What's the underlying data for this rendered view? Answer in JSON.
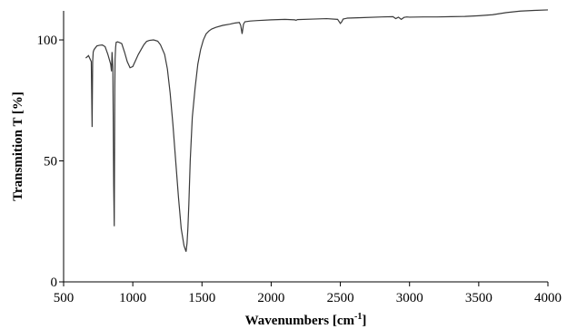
{
  "chart_data": {
    "type": "line",
    "title": "",
    "xlabel": "Wavenumbers [cm",
    "xlabel_superscript": "-1",
    "xlabel_suffix": "]",
    "ylabel": "Transmition T [%]",
    "xlim": [
      500,
      4000
    ],
    "ylim": [
      0,
      112
    ],
    "x_ticks": [
      500,
      1000,
      1500,
      2000,
      2500,
      3000,
      3500,
      4000
    ],
    "x_tick_labels": [
      "500",
      "1000",
      "1500",
      "2000",
      "2500",
      "3000",
      "3500",
      "4000"
    ],
    "y_ticks": [
      0,
      50,
      100
    ],
    "y_tick_labels": [
      "0",
      "50",
      "100"
    ],
    "grid": false,
    "line_color": "#3a3a3a",
    "series": [
      {
        "x": [
          660,
          680,
          700,
          706,
          710,
          714,
          720,
          740,
          760,
          780,
          800,
          820,
          840,
          846,
          850,
          856,
          862,
          866,
          868,
          870,
          872,
          876,
          880,
          890,
          900,
          920,
          940,
          960,
          980,
          1000,
          1020,
          1040,
          1060,
          1080,
          1100,
          1120,
          1150,
          1180,
          1200,
          1230,
          1250,
          1270,
          1290,
          1310,
          1330,
          1350,
          1370,
          1385,
          1392,
          1398,
          1405,
          1415,
          1430,
          1450,
          1470,
          1490,
          1510,
          1530,
          1550,
          1570,
          1600,
          1650,
          1700,
          1740,
          1770,
          1780,
          1790,
          1800,
          1810,
          1850,
          1900,
          2000,
          2100,
          2170,
          2180,
          2190,
          2300,
          2400,
          2480,
          2500,
          2510,
          2520,
          2550,
          2650,
          2800,
          2880,
          2900,
          2920,
          2940,
          2960,
          2980,
          3000,
          3100,
          3200,
          3300,
          3400,
          3500,
          3600,
          3700,
          3800,
          3900,
          4000
        ],
        "y": [
          92.5,
          93.5,
          91,
          64,
          91,
          95,
          96,
          97.5,
          97.8,
          97.9,
          97.2,
          94,
          90,
          87,
          95,
          89,
          40,
          23,
          50,
          80,
          92,
          97,
          99,
          99.2,
          99,
          98.5,
          95,
          91,
          88.5,
          89,
          91.5,
          94,
          96,
          98,
          99.4,
          99.8,
          100,
          99.5,
          98,
          94,
          88,
          78,
          65,
          50,
          35,
          22,
          15,
          12.5,
          16,
          22,
          32,
          50,
          68,
          80,
          90,
          96,
          100,
          102.5,
          103.7,
          104.5,
          105.2,
          106,
          106.5,
          107,
          107.2,
          106,
          102.5,
          106.5,
          107.5,
          107.8,
          108,
          108.3,
          108.5,
          108.3,
          108.1,
          108.4,
          108.6,
          108.8,
          108.5,
          106.8,
          107.5,
          108.6,
          109,
          109.2,
          109.5,
          109.6,
          108.8,
          109.4,
          108.5,
          109.3,
          109.5,
          109.4,
          109.5,
          109.5,
          109.6,
          109.7,
          110,
          110.4,
          111.3,
          111.9,
          112.2,
          112.4
        ]
      }
    ]
  }
}
